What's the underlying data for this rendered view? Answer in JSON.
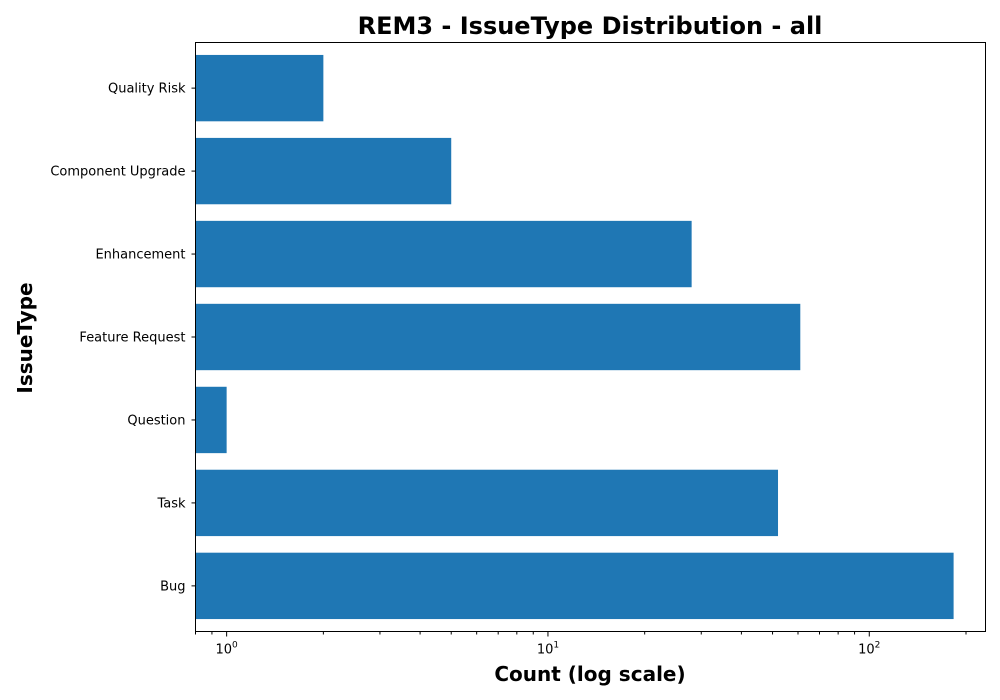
{
  "chart_data": {
    "type": "bar",
    "orientation": "horizontal",
    "title": "REM3 - IssueType Distribution - all",
    "xlabel": "Count (log scale)",
    "ylabel": "IssueType",
    "x_scale": "log",
    "xlim": [
      0.8,
      230
    ],
    "x_ticks": [
      {
        "value": 1,
        "base": "10",
        "exp": "0"
      },
      {
        "value": 10,
        "base": "10",
        "exp": "1"
      },
      {
        "value": 100,
        "base": "10",
        "exp": "2"
      }
    ],
    "categories": [
      "Bug",
      "Task",
      "Question",
      "Feature Request",
      "Enhancement",
      "Component Upgrade",
      "Quality Risk"
    ],
    "values": [
      183,
      52,
      1,
      61,
      28,
      5,
      2
    ],
    "grid": false,
    "colors": {
      "bar": "#1f77b4"
    }
  }
}
